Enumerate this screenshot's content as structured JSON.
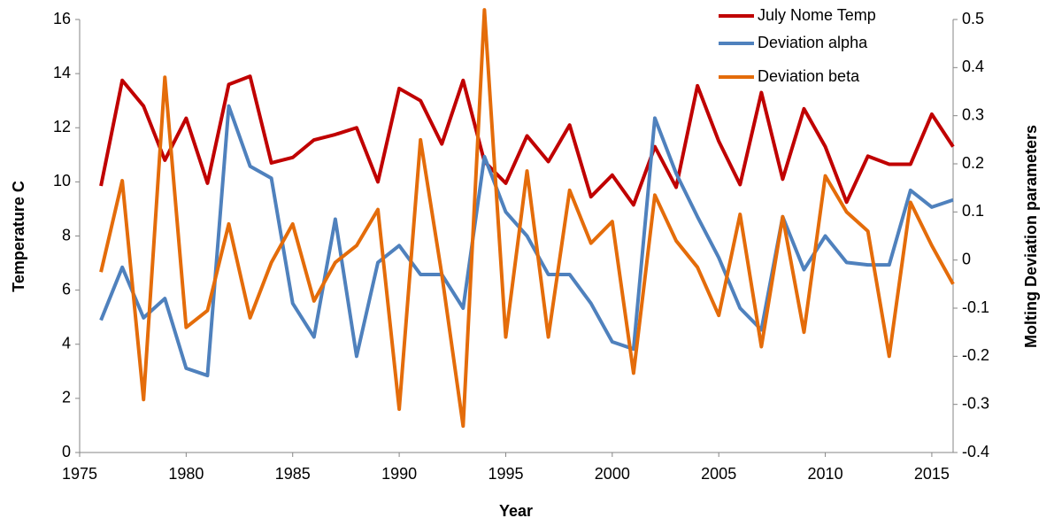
{
  "chart_data": {
    "type": "line",
    "x_label": "Year",
    "y_label": "Temperature  C",
    "y2_label": "Molting Deviation parameters",
    "x": [
      1976,
      1977,
      1978,
      1979,
      1980,
      1981,
      1982,
      1983,
      1984,
      1985,
      1986,
      1987,
      1988,
      1989,
      1990,
      1991,
      1992,
      1993,
      1994,
      1995,
      1996,
      1997,
      1998,
      1999,
      2000,
      2001,
      2002,
      2003,
      2004,
      2005,
      2006,
      2007,
      2008,
      2009,
      2010,
      2011,
      2012,
      2013,
      2014,
      2015,
      2016
    ],
    "series": [
      {
        "name": "July Nome Temp",
        "color": "#c00000",
        "axis": "y",
        "values": [
          9.85,
          13.75,
          12.8,
          10.8,
          12.35,
          9.95,
          13.6,
          13.9,
          10.7,
          10.9,
          11.55,
          11.75,
          12.0,
          10.0,
          13.45,
          13.0,
          11.4,
          13.75,
          10.75,
          9.95,
          11.7,
          10.75,
          12.1,
          9.45,
          10.25,
          9.15,
          11.3,
          9.8,
          13.55,
          11.5,
          9.9,
          13.3,
          10.1,
          12.7,
          11.3,
          9.25,
          10.95,
          10.65,
          10.65,
          12.5,
          11.3
        ]
      },
      {
        "name": "Deviation alpha",
        "color": "#4f81bd",
        "axis": "y2",
        "values": [
          -0.125,
          -0.015,
          -0.12,
          -0.08,
          -0.225,
          -0.24,
          0.32,
          0.195,
          0.17,
          -0.09,
          -0.16,
          0.085,
          -0.2,
          -0.005,
          0.03,
          -0.03,
          -0.03,
          -0.1,
          0.215,
          0.1,
          0.05,
          -0.03,
          -0.03,
          -0.09,
          -0.17,
          -0.185,
          0.295,
          0.18,
          0.09,
          0.005,
          -0.1,
          -0.145,
          0.09,
          -0.02,
          0.05,
          -0.005,
          -0.01,
          -0.01,
          0.145,
          0.11,
          0.125
        ]
      },
      {
        "name": "Deviation beta",
        "color": "#e46c0a",
        "axis": "y2",
        "values": [
          -0.025,
          0.165,
          -0.29,
          0.38,
          -0.14,
          -0.105,
          0.075,
          -0.12,
          -0.005,
          0.075,
          -0.085,
          -0.005,
          0.03,
          0.105,
          -0.31,
          0.25,
          -0.03,
          -0.345,
          0.52,
          -0.16,
          0.185,
          -0.16,
          0.145,
          0.035,
          0.08,
          -0.235,
          0.135,
          0.04,
          -0.015,
          -0.115,
          0.095,
          -0.18,
          0.09,
          -0.15,
          0.175,
          0.1,
          0.06,
          -0.2,
          0.12,
          0.03,
          -0.05
        ]
      }
    ],
    "xlim": [
      1975,
      2016
    ],
    "xticks": [
      1975,
      1980,
      1985,
      1990,
      1995,
      2000,
      2005,
      2010,
      2015
    ],
    "ylim": [
      0,
      16
    ],
    "yticks": [
      0,
      2,
      4,
      6,
      8,
      10,
      12,
      14,
      16
    ],
    "y2lim": [
      -0.4,
      0.5
    ],
    "y2ticks": [
      -0.4,
      -0.3,
      -0.2,
      -0.1,
      0,
      0.1,
      0.2,
      0.3,
      0.4,
      0.5
    ],
    "grid": false,
    "legend": "top-right"
  }
}
